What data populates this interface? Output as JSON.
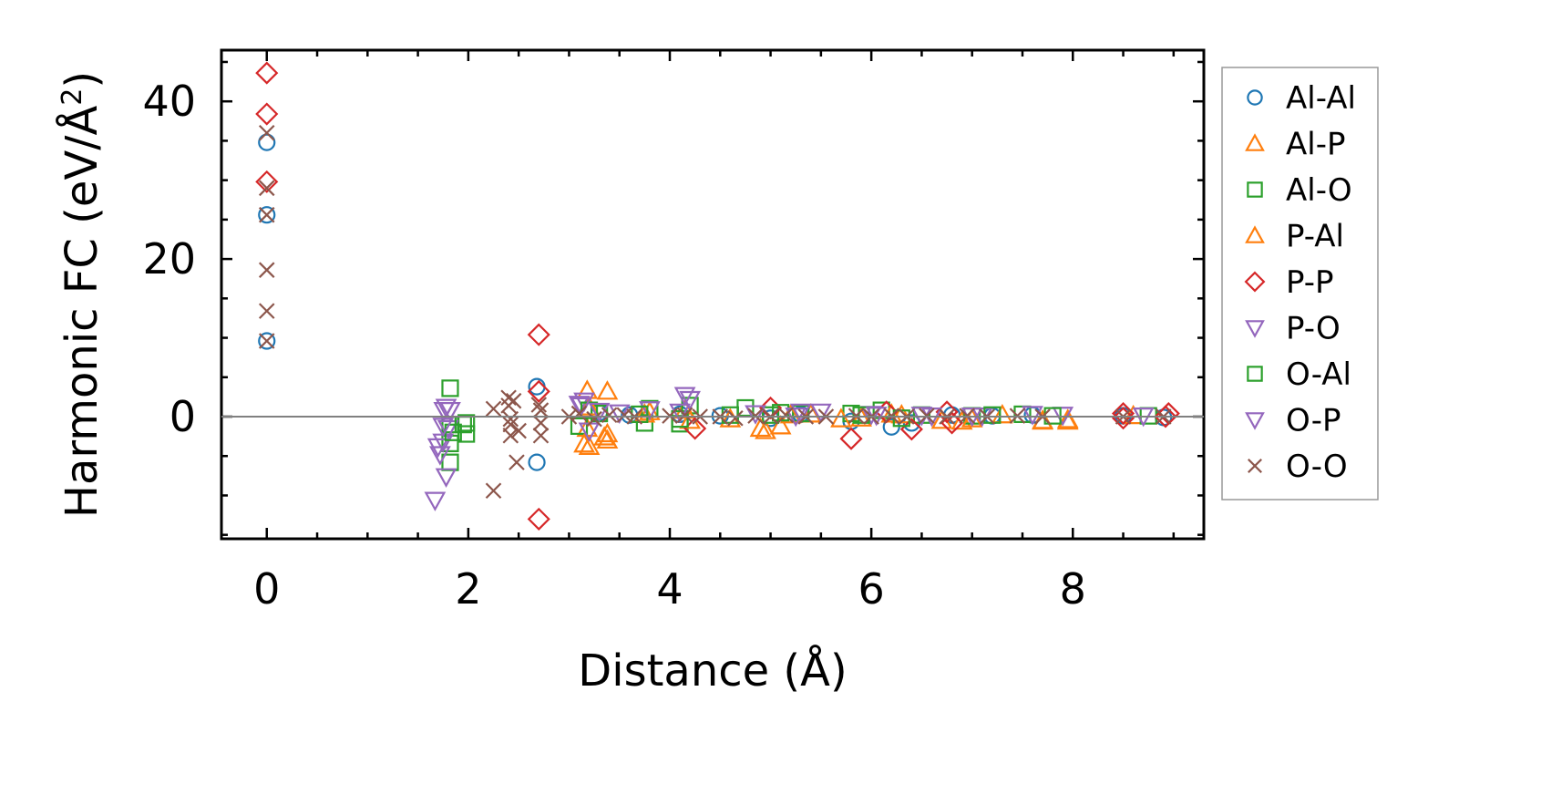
{
  "chart_data": {
    "type": "scatter",
    "title": "",
    "xlabel": "Distance (Å)",
    "ylabel": {
      "main": "Harmonic FC (eV/Å",
      "sup": "2",
      "close": ")"
    },
    "xlim": [
      -0.45,
      9.3
    ],
    "ylim": [
      -15.5,
      46.5
    ],
    "xticks": [
      0,
      2,
      4,
      6,
      8
    ],
    "yticks": [
      0,
      20,
      40
    ],
    "xtick_labels": [
      "0",
      "2",
      "4",
      "6",
      "8"
    ],
    "ytick_labels": [
      "0",
      "20",
      "40"
    ],
    "xminor_step": 0.5,
    "yminor_step": 5,
    "zero_line": true,
    "grid": false,
    "legend_position": "outside-right",
    "series": [
      {
        "name": "Al-Al",
        "marker": "circle",
        "color": "#1f77b4",
        "points": [
          [
            0,
            34.8
          ],
          [
            0,
            25.6
          ],
          [
            0,
            9.6
          ],
          [
            2.68,
            3.8
          ],
          [
            2.68,
            -5.8
          ],
          [
            3.3,
            0.5
          ],
          [
            3.6,
            0.2
          ],
          [
            4.1,
            0.3
          ],
          [
            4.5,
            0.1
          ],
          [
            5.0,
            -0.2
          ],
          [
            5.3,
            0.3
          ],
          [
            5.8,
            -0.6
          ],
          [
            6.2,
            -1.3
          ],
          [
            6.4,
            -0.8
          ],
          [
            6.8,
            0.2
          ],
          [
            7.2,
            0.1
          ],
          [
            7.6,
            0.2
          ],
          [
            8.5,
            0.1
          ],
          [
            8.9,
            -0.1
          ]
        ]
      },
      {
        "name": "Al-P",
        "marker": "triangle-up",
        "color": "#ff7f0e",
        "points": [
          [
            3.18,
            3.3
          ],
          [
            3.18,
            -1.5
          ],
          [
            3.2,
            -3.8
          ],
          [
            3.38,
            3.2
          ],
          [
            3.38,
            -3.0
          ],
          [
            3.38,
            -2.2
          ],
          [
            3.8,
            0.6
          ],
          [
            4.15,
            0.8
          ],
          [
            4.6,
            -0.3
          ],
          [
            4.95,
            -1.8
          ],
          [
            5.1,
            -1.2
          ],
          [
            5.4,
            0.3
          ],
          [
            5.9,
            -0.2
          ],
          [
            6.3,
            0.2
          ],
          [
            6.9,
            -0.6
          ],
          [
            7.3,
            0.2
          ],
          [
            7.7,
            -0.6
          ],
          [
            7.95,
            -0.4
          ],
          [
            8.6,
            0.1
          ]
        ]
      },
      {
        "name": "Al-O",
        "marker": "square",
        "color": "#2ca02c",
        "points": [
          [
            1.82,
            3.6
          ],
          [
            1.82,
            -1.0
          ],
          [
            1.82,
            -3.4
          ],
          [
            1.82,
            -5.8
          ],
          [
            1.98,
            -0.8
          ],
          [
            1.98,
            -2.2
          ],
          [
            3.1,
            -1.2
          ],
          [
            3.3,
            0.4
          ],
          [
            3.75,
            -0.8
          ],
          [
            3.8,
            1.0
          ],
          [
            4.1,
            -0.9
          ],
          [
            4.2,
            1.4
          ],
          [
            4.75,
            1.1
          ],
          [
            5.0,
            0.2
          ],
          [
            5.3,
            0.4
          ],
          [
            5.8,
            0.4
          ],
          [
            6.1,
            0.8
          ],
          [
            6.5,
            0.2
          ],
          [
            7.0,
            0.1
          ],
          [
            7.5,
            0.3
          ],
          [
            8.75,
            0.1
          ]
        ]
      },
      {
        "name": "P-Al",
        "marker": "triangle-up",
        "color": "#ff7f0e",
        "points": [
          [
            3.15,
            -3.5
          ],
          [
            3.35,
            -2.6
          ],
          [
            3.2,
            1.2
          ],
          [
            3.75,
            0.3
          ],
          [
            4.2,
            -0.5
          ],
          [
            4.9,
            -1.5
          ],
          [
            5.2,
            0.2
          ],
          [
            5.7,
            -0.3
          ],
          [
            6.2,
            0.3
          ],
          [
            6.7,
            -0.5
          ],
          [
            7.0,
            -0.3
          ],
          [
            7.7,
            -0.5
          ],
          [
            7.95,
            -0.6
          ]
        ]
      },
      {
        "name": "P-P",
        "marker": "diamond",
        "color": "#d62728",
        "points": [
          [
            0,
            43.6
          ],
          [
            0,
            38.4
          ],
          [
            0,
            29.8
          ],
          [
            2.7,
            10.4
          ],
          [
            2.7,
            3.2
          ],
          [
            2.7,
            -13.0
          ],
          [
            4.25,
            -1.5
          ],
          [
            5.0,
            1.1
          ],
          [
            5.8,
            -2.8
          ],
          [
            6.15,
            0.6
          ],
          [
            6.4,
            -1.6
          ],
          [
            6.75,
            0.6
          ],
          [
            6.8,
            -0.8
          ],
          [
            8.5,
            -0.2
          ],
          [
            8.5,
            0.4
          ],
          [
            8.92,
            0.0
          ],
          [
            8.95,
            0.4
          ]
        ]
      },
      {
        "name": "P-O",
        "marker": "triangle-down",
        "color": "#9467bd",
        "points": [
          [
            1.67,
            -10.6
          ],
          [
            1.7,
            -3.8
          ],
          [
            1.72,
            -4.8
          ],
          [
            1.75,
            -3.2
          ],
          [
            1.78,
            -7.6
          ],
          [
            1.78,
            1.2
          ],
          [
            1.82,
            0.8
          ],
          [
            1.8,
            -1.5
          ],
          [
            3.1,
            1.6
          ],
          [
            3.15,
            2.0
          ],
          [
            3.2,
            -1.8
          ],
          [
            3.5,
            0.5
          ],
          [
            3.8,
            0.9
          ],
          [
            4.15,
            2.7
          ],
          [
            4.2,
            2.2
          ],
          [
            4.85,
            0.4
          ],
          [
            5.3,
            0.6
          ],
          [
            5.5,
            0.6
          ],
          [
            6.0,
            0.3
          ],
          [
            6.5,
            0.2
          ],
          [
            7.1,
            0.1
          ],
          [
            7.6,
            0.3
          ],
          [
            7.9,
            0.2
          ],
          [
            8.7,
            0.1
          ]
        ]
      },
      {
        "name": "O-Al",
        "marker": "square",
        "color": "#2ca02c",
        "points": [
          [
            1.85,
            -2.0
          ],
          [
            1.95,
            -1.0
          ],
          [
            3.2,
            0.8
          ],
          [
            3.7,
            0.3
          ],
          [
            4.1,
            -0.3
          ],
          [
            4.6,
            0.2
          ],
          [
            5.1,
            0.5
          ],
          [
            5.9,
            0.2
          ],
          [
            6.3,
            -0.2
          ],
          [
            7.2,
            0.2
          ],
          [
            7.8,
            0.1
          ]
        ]
      },
      {
        "name": "O-P",
        "marker": "triangle-down",
        "color": "#9467bd",
        "points": [
          [
            1.76,
            0.8
          ],
          [
            1.75,
            -1.2
          ],
          [
            3.12,
            1.4
          ],
          [
            3.3,
            0.7
          ],
          [
            4.1,
            0.6
          ],
          [
            5.25,
            0.1
          ],
          [
            6.05,
            0.2
          ],
          [
            6.6,
            0.1
          ],
          [
            7.0,
            0.1
          ]
        ]
      },
      {
        "name": "O-O",
        "marker": "x",
        "color": "#8c564b",
        "points": [
          [
            0,
            36.0
          ],
          [
            0,
            29.0
          ],
          [
            0,
            25.6
          ],
          [
            0,
            18.6
          ],
          [
            0,
            13.4
          ],
          [
            0,
            9.6
          ],
          [
            2.25,
            -9.4
          ],
          [
            2.25,
            1.0
          ],
          [
            2.4,
            2.4
          ],
          [
            2.4,
            1.4
          ],
          [
            2.42,
            -0.3
          ],
          [
            2.42,
            -1.0
          ],
          [
            2.42,
            -2.4
          ],
          [
            2.45,
            2.0
          ],
          [
            2.48,
            -5.8
          ],
          [
            2.5,
            -1.8
          ],
          [
            2.72,
            -2.4
          ],
          [
            2.72,
            -0.8
          ],
          [
            2.72,
            0.8
          ],
          [
            2.7,
            1.5
          ],
          [
            3.0,
            0.0
          ],
          [
            3.1,
            0.4
          ],
          [
            3.25,
            -0.3
          ],
          [
            3.4,
            0.2
          ],
          [
            3.55,
            0.2
          ],
          [
            3.65,
            0.0
          ],
          [
            4.0,
            0.1
          ],
          [
            4.15,
            0.2
          ],
          [
            4.3,
            0.0
          ],
          [
            4.5,
            0.0
          ],
          [
            4.65,
            -0.2
          ],
          [
            4.85,
            0.1
          ],
          [
            5.0,
            0.0
          ],
          [
            5.15,
            0.2
          ],
          [
            5.35,
            0.0
          ],
          [
            5.55,
            0.0
          ],
          [
            5.85,
            0.1
          ],
          [
            6.0,
            0.0
          ],
          [
            6.2,
            0.1
          ],
          [
            6.35,
            0.0
          ],
          [
            6.55,
            0.1
          ],
          [
            6.75,
            0.0
          ],
          [
            6.95,
            0.1
          ],
          [
            7.15,
            0.0
          ],
          [
            7.45,
            0.1
          ],
          [
            7.7,
            0.0
          ],
          [
            8.5,
            0.0
          ],
          [
            8.9,
            0.0
          ]
        ]
      }
    ]
  }
}
